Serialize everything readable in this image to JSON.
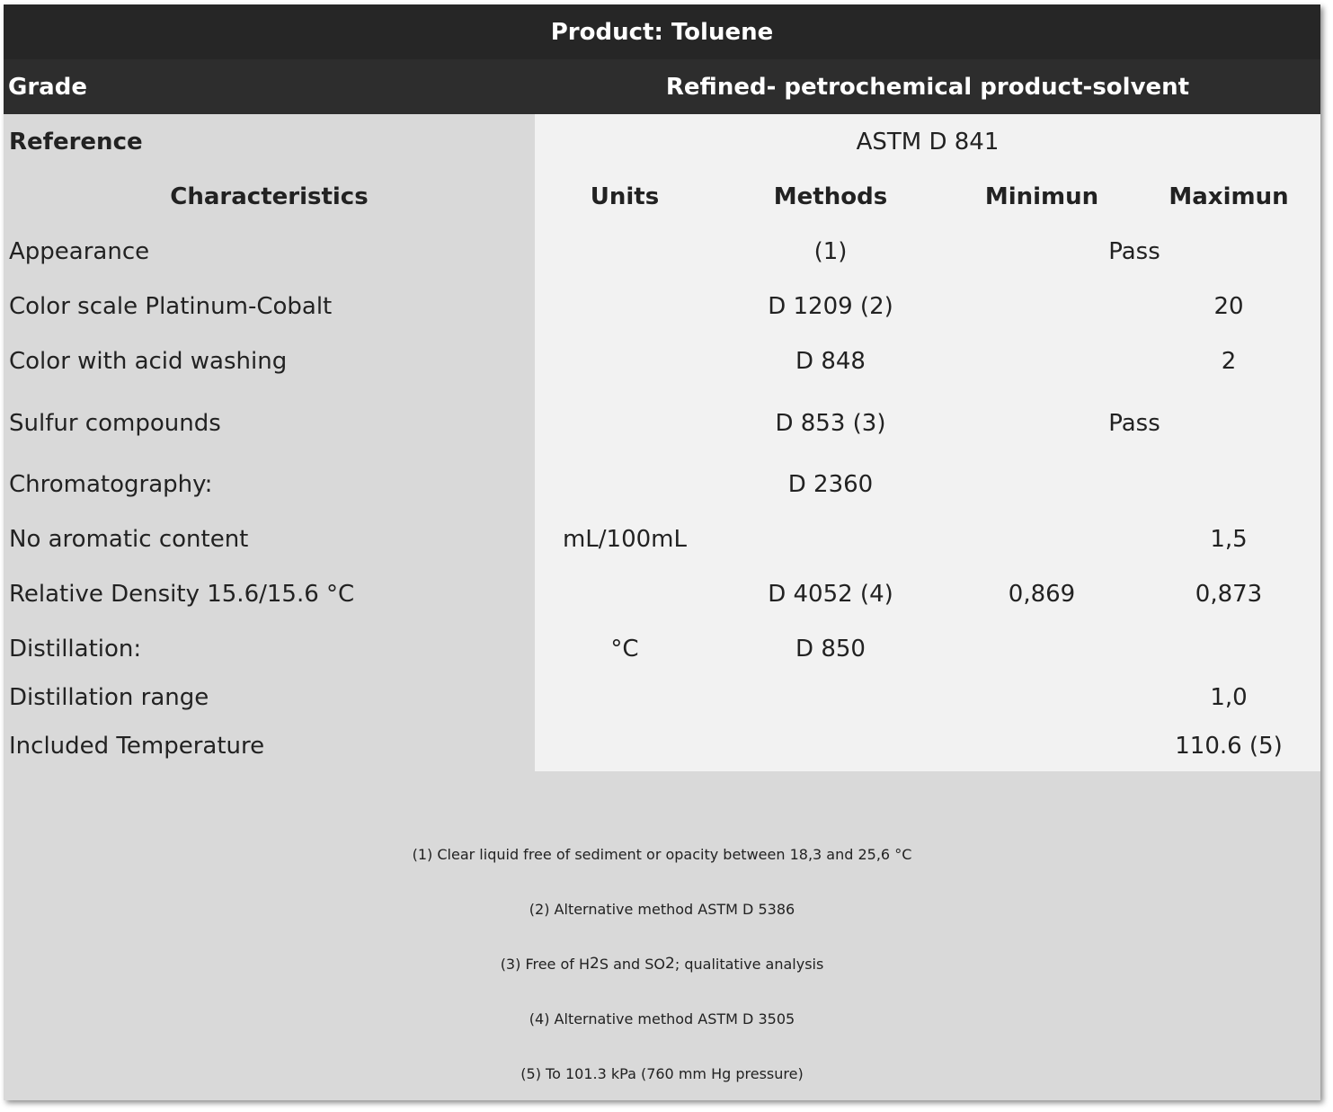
{
  "title": "Product: Toluene",
  "grade": {
    "label": "Grade",
    "value": "Refined- petrochemical product-solvent"
  },
  "reference": {
    "label": "Reference",
    "value": "ASTM D 841"
  },
  "columns": {
    "characteristics": "Characteristics",
    "units": "Units",
    "methods": "Methods",
    "minimum": "Minimun",
    "maximum": "Maximun"
  },
  "rows": [
    {
      "characteristic": "Appearance",
      "units": "",
      "method": "(1)",
      "minimum": "",
      "maximum": "",
      "spec": "Pass"
    },
    {
      "characteristic": "Color scale Platinum-Cobalt",
      "units": "",
      "method": "D 1209 (2)",
      "minimum": "",
      "maximum": "20",
      "spec": ""
    },
    {
      "characteristic": "Color with acid washing",
      "units": "",
      "method": "D 848",
      "minimum": "",
      "maximum": "2",
      "spec": ""
    },
    {
      "characteristic": "Sulfur compounds",
      "units": "",
      "method": "D 853 (3)",
      "minimum": "",
      "maximum": "",
      "spec": "Pass"
    },
    {
      "characteristic": "Chromatography:",
      "units": "",
      "method": "D 2360",
      "minimum": "",
      "maximum": "",
      "spec": ""
    },
    {
      "characteristic": "No aromatic content",
      "units": "mL/100mL",
      "method": "",
      "minimum": "",
      "maximum": "1,5",
      "spec": ""
    },
    {
      "characteristic": "Relative Density 15.6/15.6 °C",
      "units": "",
      "method": "D 4052 (4)",
      "minimum": "0,869",
      "maximum": "0,873",
      "spec": ""
    },
    {
      "characteristic": "Distillation:",
      "units": "°C",
      "method": "D 850",
      "minimum": "",
      "maximum": "",
      "spec": ""
    },
    {
      "characteristic": "Distillation range",
      "units": "",
      "method": "",
      "minimum": "",
      "maximum": "1,0",
      "spec": ""
    },
    {
      "characteristic": "Included Temperature",
      "units": "",
      "method": "",
      "minimum": "",
      "maximum": "110.6 (5)",
      "spec": ""
    }
  ],
  "notes": {
    "n1": "(1) Clear liquid free of sediment or opacity between 18,3 and 25,6 °C",
    "n2": "(2) Alternative method ASTM D 5386",
    "n3_a": "(3) Free of H",
    "n3_sub1": "2",
    "n3_b": "S and SO",
    "n3_sub2": "2",
    "n3_c": "; qualitative analysis",
    "n4": "(4) Alternative method ASTM D 3505",
    "n5": "(5) To 101.3 kPa (760 mm Hg pressure)"
  }
}
